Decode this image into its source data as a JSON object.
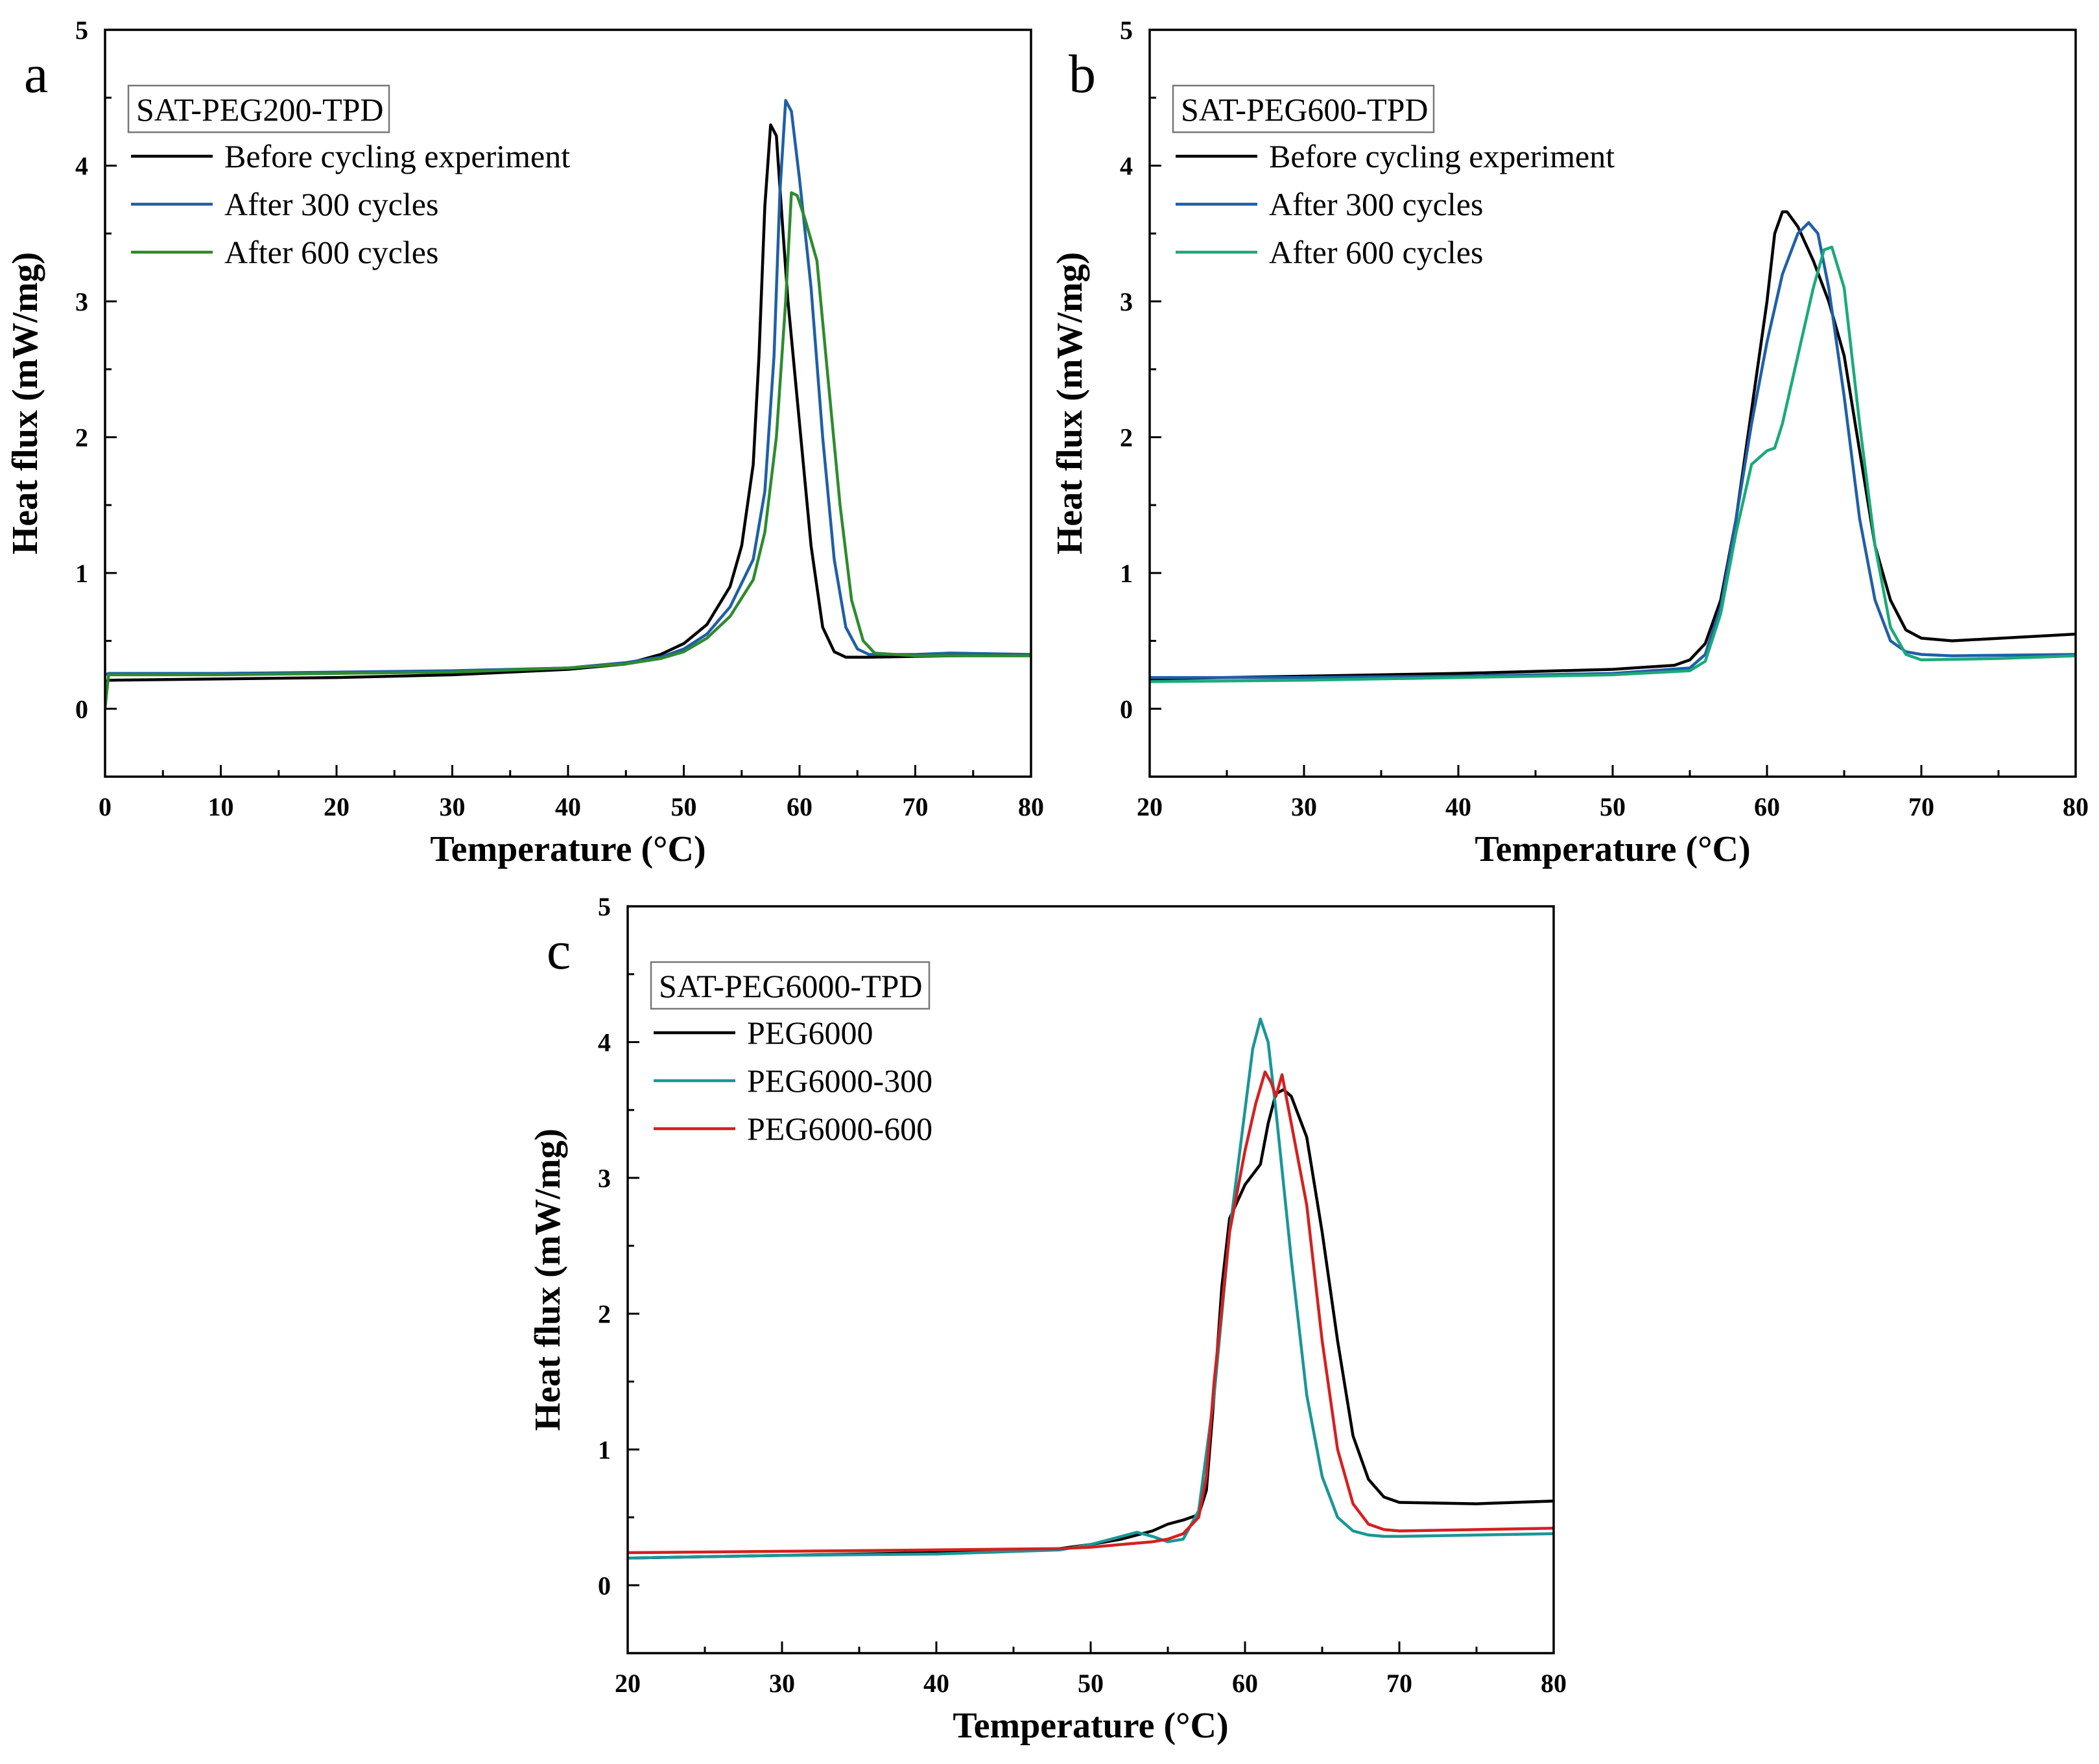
{
  "chart_data": [
    {
      "type": "line",
      "panel_label": "a",
      "legend_title": "SAT-PEG200-TPD",
      "xlabel": "Temperature (°C)",
      "ylabel": "Heat flux (mW/mg)",
      "xlim": [
        0,
        80
      ],
      "ylim": [
        -0.5,
        5
      ],
      "xticks": [
        0,
        10,
        20,
        30,
        40,
        50,
        60,
        70,
        80
      ],
      "yticks": [
        0,
        1,
        2,
        3,
        4,
        5
      ],
      "grid": false,
      "legend_position": "top-left",
      "series": [
        {
          "name": "Before cycling experiment",
          "color": "#000000",
          "x": [
            0,
            0.3,
            10,
            20,
            30,
            40,
            45,
            48,
            50,
            52,
            54,
            55,
            56,
            56.5,
            57,
            57.5,
            58,
            58.5,
            59,
            60,
            61,
            62,
            63,
            64,
            66,
            80
          ],
          "y": [
            0.2,
            0.21,
            0.22,
            0.23,
            0.25,
            0.29,
            0.33,
            0.4,
            0.48,
            0.62,
            0.9,
            1.2,
            1.8,
            2.6,
            3.7,
            4.3,
            4.22,
            3.6,
            3.0,
            2.1,
            1.2,
            0.6,
            0.42,
            0.38,
            0.38,
            0.4
          ]
        },
        {
          "name": "After 300 cycles",
          "color": "#1f5fa6",
          "x": [
            0,
            0.3,
            10,
            20,
            30,
            40,
            45,
            48,
            50,
            52,
            54,
            56,
            57,
            57.8,
            58.3,
            58.8,
            59.3,
            60,
            61,
            62,
            63,
            64,
            65,
            66,
            70,
            73,
            80
          ],
          "y": [
            0.25,
            0.26,
            0.26,
            0.27,
            0.28,
            0.3,
            0.34,
            0.38,
            0.44,
            0.55,
            0.75,
            1.1,
            1.6,
            2.6,
            3.8,
            4.48,
            4.4,
            3.9,
            3.1,
            2.0,
            1.1,
            0.6,
            0.44,
            0.4,
            0.4,
            0.41,
            0.4
          ]
        },
        {
          "name": "After 600 cycles",
          "color": "#2e8b2e",
          "x": [
            0,
            0.3,
            10,
            20,
            30,
            40,
            45,
            48,
            50,
            52,
            54,
            56,
            57,
            58,
            58.8,
            59.3,
            59.8,
            60.5,
            61.5,
            62.5,
            63.5,
            64.5,
            65.5,
            66.5,
            70,
            80
          ],
          "y": [
            0.0,
            0.25,
            0.25,
            0.26,
            0.27,
            0.3,
            0.33,
            0.37,
            0.42,
            0.52,
            0.68,
            0.95,
            1.3,
            2.0,
            3.0,
            3.8,
            3.78,
            3.6,
            3.3,
            2.4,
            1.5,
            0.8,
            0.5,
            0.41,
            0.39,
            0.39
          ]
        }
      ]
    },
    {
      "type": "line",
      "panel_label": "b",
      "legend_title": "SAT-PEG600-TPD",
      "xlabel": "Temperature (°C)",
      "ylabel": "Heat flux (mW/mg)",
      "xlim": [
        20,
        80
      ],
      "ylim": [
        -0.5,
        5
      ],
      "xticks": [
        20,
        30,
        40,
        50,
        60,
        70,
        80
      ],
      "yticks": [
        0,
        1,
        2,
        3,
        4,
        5
      ],
      "grid": false,
      "legend_position": "top-left",
      "series": [
        {
          "name": "Before cycling experiment",
          "color": "#000000",
          "x": [
            20,
            30,
            40,
            50,
            54,
            55,
            56,
            57,
            58,
            59,
            60,
            60.5,
            61,
            61.3,
            62,
            63,
            64,
            65,
            66,
            67,
            68,
            69,
            70,
            72,
            80
          ],
          "y": [
            0.22,
            0.24,
            0.26,
            0.29,
            0.32,
            0.36,
            0.48,
            0.8,
            1.4,
            2.2,
            3.0,
            3.5,
            3.66,
            3.66,
            3.55,
            3.3,
            3.0,
            2.6,
            1.9,
            1.2,
            0.8,
            0.58,
            0.52,
            0.5,
            0.55
          ]
        },
        {
          "name": "After 300 cycles",
          "color": "#1f5fa6",
          "x": [
            20,
            30,
            40,
            50,
            55,
            56,
            57,
            58,
            59,
            60,
            61,
            62,
            62.7,
            63.3,
            64,
            65,
            66,
            67,
            68,
            69,
            70,
            72,
            80
          ],
          "y": [
            0.23,
            0.23,
            0.24,
            0.26,
            0.3,
            0.4,
            0.75,
            1.4,
            2.1,
            2.7,
            3.2,
            3.5,
            3.58,
            3.5,
            3.1,
            2.3,
            1.4,
            0.8,
            0.5,
            0.42,
            0.4,
            0.39,
            0.4
          ]
        },
        {
          "name": "After 600 cycles",
          "color": "#1aaa7a",
          "x": [
            20,
            30,
            40,
            50,
            55,
            56,
            57,
            58,
            59,
            60,
            60.5,
            61,
            62,
            63,
            63.7,
            64.2,
            65,
            66,
            67,
            68,
            69,
            70,
            75,
            80
          ],
          "y": [
            0.2,
            0.21,
            0.23,
            0.25,
            0.28,
            0.35,
            0.7,
            1.3,
            1.8,
            1.9,
            1.92,
            2.1,
            2.6,
            3.1,
            3.38,
            3.4,
            3.1,
            2.1,
            1.2,
            0.6,
            0.4,
            0.36,
            0.37,
            0.39
          ]
        }
      ]
    },
    {
      "type": "line",
      "panel_label": "c",
      "legend_title": "SAT-PEG6000-TPD",
      "xlabel": "Temperature (°C)",
      "ylabel": "Heat flux (mW/mg)",
      "xlim": [
        20,
        80
      ],
      "ylim": [
        -0.5,
        5
      ],
      "xticks": [
        20,
        30,
        40,
        50,
        60,
        70,
        80
      ],
      "yticks": [
        0,
        1,
        2,
        3,
        4,
        5
      ],
      "grid": false,
      "legend_position": "top-left",
      "series": [
        {
          "name": "PEG6000",
          "color": "#000000",
          "x": [
            20,
            30,
            40,
            45,
            48,
            50,
            52,
            54,
            55,
            56,
            57,
            57.5,
            58,
            58.5,
            59,
            60,
            61,
            61.5,
            62,
            62.5,
            63,
            64,
            65,
            66,
            67,
            68,
            69,
            70,
            75,
            80
          ],
          "y": [
            0.2,
            0.22,
            0.24,
            0.25,
            0.27,
            0.3,
            0.34,
            0.4,
            0.45,
            0.48,
            0.52,
            0.7,
            1.4,
            2.2,
            2.7,
            2.95,
            3.1,
            3.4,
            3.62,
            3.65,
            3.6,
            3.3,
            2.6,
            1.8,
            1.1,
            0.78,
            0.65,
            0.61,
            0.6,
            0.62
          ]
        },
        {
          "name": "PEG6000-300",
          "color": "#1a9696",
          "x": [
            20,
            30,
            40,
            48,
            50,
            52,
            53,
            54,
            55,
            56,
            57,
            58,
            59,
            60,
            60.5,
            61,
            61.5,
            62,
            63,
            64,
            65,
            66,
            67,
            68,
            69,
            70,
            80
          ],
          "y": [
            0.2,
            0.22,
            0.23,
            0.26,
            0.3,
            0.36,
            0.39,
            0.36,
            0.32,
            0.34,
            0.55,
            1.4,
            2.6,
            3.5,
            3.95,
            4.17,
            4.0,
            3.5,
            2.4,
            1.4,
            0.8,
            0.5,
            0.4,
            0.37,
            0.36,
            0.36,
            0.38
          ]
        },
        {
          "name": "PEG6000-600",
          "color": "#d42020",
          "x": [
            20,
            30,
            40,
            48,
            50,
            52,
            54,
            55,
            56,
            57,
            57.5,
            58,
            59,
            60,
            60.7,
            61.3,
            61.7,
            62,
            62.4,
            63,
            64,
            65,
            66,
            67,
            68,
            69,
            70,
            80
          ],
          "y": [
            0.24,
            0.25,
            0.26,
            0.27,
            0.28,
            0.3,
            0.32,
            0.34,
            0.38,
            0.5,
            0.8,
            1.5,
            2.6,
            3.2,
            3.55,
            3.78,
            3.7,
            3.6,
            3.76,
            3.4,
            2.8,
            1.8,
            1.0,
            0.6,
            0.45,
            0.41,
            0.4,
            0.42
          ]
        }
      ]
    }
  ]
}
